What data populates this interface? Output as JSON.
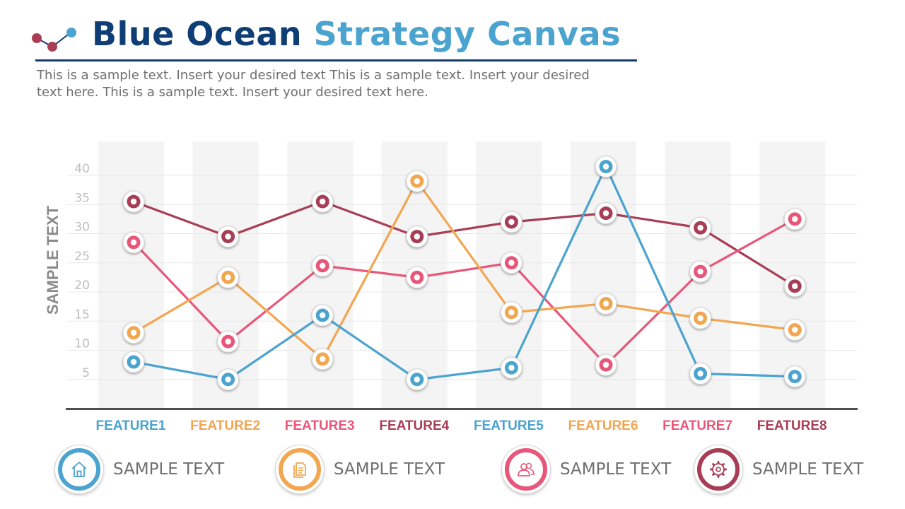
{
  "header": {
    "title_part1": "Blue Ocean",
    "title_part2": "Strategy Canvas",
    "description": "This is a sample text. Insert your desired text This is a sample text. Insert your desired text here. This is a sample text. Insert your desired text here."
  },
  "colors": {
    "title_dark": "#0f3d75",
    "title_light": "#4ba3cf",
    "blue": "#4ba3cf",
    "orange": "#f2a650",
    "pink": "#e8577a",
    "maroon": "#a83e55",
    "axis": "#2b2b2b",
    "gridline": "#e8e8e8",
    "column_band": "#f4f4f4"
  },
  "legend": [
    {
      "label": "SAMPLE TEXT",
      "icon": "home-icon",
      "color": "#4ba3cf"
    },
    {
      "label": "SAMPLE TEXT",
      "icon": "document-icon",
      "color": "#f2a650"
    },
    {
      "label": "SAMPLE TEXT",
      "icon": "users-icon",
      "color": "#e8577a"
    },
    {
      "label": "SAMPLE TEXT",
      "icon": "gear-icon",
      "color": "#a83e55"
    }
  ],
  "chart_data": {
    "type": "line",
    "ylabel": "SAMPLE TEXT",
    "xlabel": "",
    "ylim": [
      0,
      42.5
    ],
    "yticks": [
      5,
      10,
      15,
      20,
      25,
      30,
      35,
      40
    ],
    "grid": true,
    "categories": [
      "FEATURE1",
      "FEATURE2",
      "FEATURE3",
      "FEATURE4",
      "FEATURE5",
      "FEATURE6",
      "FEATURE7",
      "FEATURE8"
    ],
    "category_colors": [
      "#4ba3cf",
      "#f2a650",
      "#e8577a",
      "#a83e55",
      "#4ba3cf",
      "#f2a650",
      "#e8577a",
      "#a83e55"
    ],
    "series": [
      {
        "color": "#a83e55",
        "values": [
          35.5,
          29.5,
          35.5,
          29.5,
          32,
          33.5,
          31,
          21
        ]
      },
      {
        "color": "#e8577a",
        "values": [
          28.5,
          11.5,
          24.5,
          22.5,
          25,
          7.5,
          23.5,
          32.5
        ]
      },
      {
        "color": "#f2a650",
        "values": [
          13,
          22.5,
          8.5,
          39,
          16.5,
          18,
          15.5,
          13.5
        ]
      },
      {
        "color": "#4ba3cf",
        "values": [
          8,
          5,
          16,
          5,
          7,
          41.5,
          6,
          5.5
        ]
      }
    ]
  }
}
